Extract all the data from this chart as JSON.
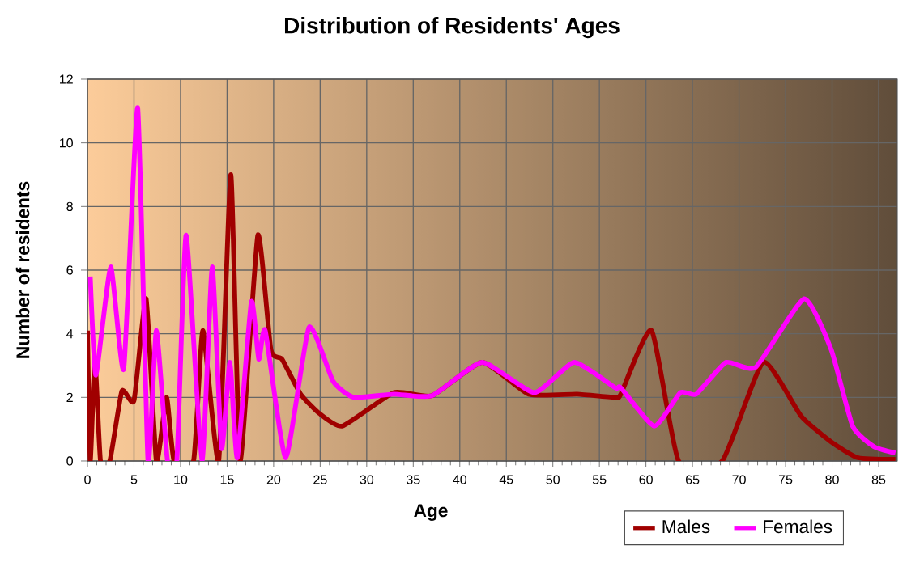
{
  "chart_data": {
    "type": "line",
    "title": "Distribution of Residents' Ages",
    "xlabel": "Age",
    "ylabel": "Number of residents",
    "xlim": [
      0,
      87
    ],
    "ylim": [
      0,
      12
    ],
    "xticks": [
      0,
      5,
      10,
      15,
      20,
      25,
      30,
      35,
      40,
      45,
      50,
      55,
      60,
      65,
      70,
      75,
      80,
      85
    ],
    "yticks": [
      0,
      2,
      4,
      6,
      8,
      10,
      12
    ],
    "grid": true,
    "legend": "bottom right",
    "series": [
      {
        "name": "Males",
        "color": "#a00000",
        "x": [
          0,
          0.3,
          0.8,
          1.4,
          2.4,
          3.7,
          5.0,
          6.3,
          7.4,
          8.5,
          9.3,
          11.4,
          12.4,
          14.1,
          15.4,
          16.4,
          18.3,
          19.7,
          20.9,
          22.9,
          24.9,
          27.4,
          32.9,
          37,
          42.4,
          47.4,
          52.6,
          56.7,
          57.3,
          60.6,
          63.5,
          68.2,
          72.6,
          76.7,
          79.9,
          82.8,
          86.8
        ],
        "values": [
          4.1,
          0,
          3.2,
          0,
          0,
          2.2,
          1.9,
          5.1,
          0,
          2.0,
          0,
          0,
          4.1,
          0,
          9.0,
          0,
          7.1,
          3.5,
          3.2,
          2.1,
          1.5,
          1.1,
          2.15,
          2.05,
          3.1,
          2.1,
          2.1,
          2.0,
          2.1,
          4.1,
          0,
          0,
          3.1,
          1.4,
          0.6,
          0.1,
          0.05
        ]
      },
      {
        "name": "Females",
        "color": "#ff00ff",
        "x": [
          0.3,
          0.9,
          2.5,
          3.9,
          5.4,
          6.5,
          7.4,
          8.6,
          9.6,
          10.6,
          12.3,
          13.4,
          14.4,
          15.3,
          16.1,
          17.6,
          18.4,
          19.1,
          21.3,
          23.8,
          26.4,
          28.6,
          32.9,
          37,
          42.4,
          48,
          52.3,
          56.7,
          57.3,
          60.9,
          63.7,
          65.4,
          68.6,
          71.8,
          77.0,
          79.9,
          82.2,
          84.5,
          86.8
        ],
        "values": [
          5.8,
          2.7,
          6.1,
          2.9,
          11.1,
          0,
          4.1,
          0,
          0,
          7.1,
          0,
          6.1,
          0.4,
          3.1,
          0.1,
          5.0,
          3.2,
          4.1,
          0.1,
          4.2,
          2.5,
          2.0,
          2.1,
          2.05,
          3.1,
          2.15,
          3.1,
          2.3,
          2.3,
          1.1,
          2.15,
          2.1,
          3.1,
          2.95,
          5.1,
          3.5,
          1.1,
          0.45,
          0.25
        ]
      }
    ]
  }
}
